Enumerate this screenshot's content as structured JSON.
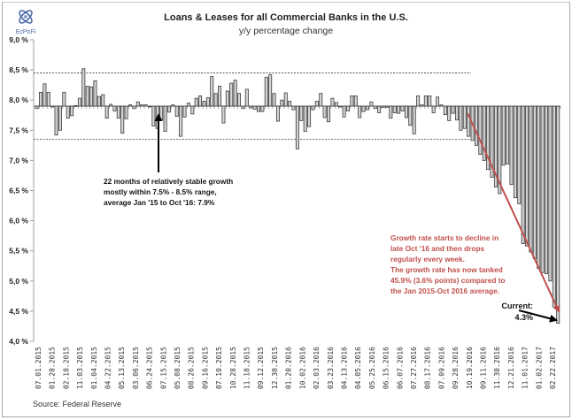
{
  "logo": {
    "text": "EcPoFi",
    "icon": "ecpofi-logo-icon"
  },
  "chart_data": {
    "type": "bar",
    "title": "Loans & Leases for all Commercial Banks in the U.S.",
    "subtitle": "y/y percentage change",
    "xlabel": "",
    "ylabel": "",
    "ylim": [
      4.0,
      9.0
    ],
    "bar_base": 7.9,
    "yticks": [
      "9,0 %",
      "8,5 %",
      "8,0 %",
      "7,5 %",
      "7,0 %",
      "6,5 %",
      "6,0 %",
      "5,5 %",
      "5,0 %",
      "4,5 %",
      "4,0 %"
    ],
    "ytick_values": [
      9.0,
      8.5,
      8.0,
      7.5,
      7.0,
      6.5,
      6.0,
      5.5,
      5.0,
      4.5,
      4.0
    ],
    "x_tick_labels": [
      "07.01.2015",
      "01.28.2015",
      "02.18.2015",
      "11.03.2015",
      "01.04.2015",
      "04.22.2015",
      "05.13.2015",
      "03.06.2015",
      "06.24.2015",
      "07.15.2015",
      "05.08.2015",
      "08.26.2015",
      "09.16.2015",
      "07.10.2015",
      "10.28.2015",
      "11.18.2015",
      "09.12.2015",
      "12.30.2015",
      "01.20.2016",
      "10.02.2016",
      "02.03.2016",
      "03.23.2016",
      "04.13.2016",
      "04.05.2016",
      "05.25.2016",
      "06.15.2016",
      "06.07.2016",
      "07.27.2016",
      "08.17.2016",
      "07.09.2016",
      "09.28.2016",
      "10.19.2016",
      "09.11.2016",
      "11.30.2016",
      "12.21.2016",
      "11.01.2017",
      "01.02.2017",
      "02.22.2017"
    ],
    "values": [
      7.86,
      8.13,
      8.27,
      8.13,
      7.89,
      7.42,
      7.5,
      8.13,
      7.7,
      7.74,
      7.91,
      8.03,
      8.52,
      8.23,
      8.22,
      8.32,
      8.06,
      8.09,
      7.7,
      7.93,
      7.82,
      7.7,
      7.45,
      7.69,
      7.92,
      7.86,
      7.97,
      7.92,
      7.92,
      7.89,
      7.57,
      7.53,
      7.67,
      7.48,
      7.8,
      7.92,
      7.73,
      7.4,
      7.72,
      7.95,
      7.77,
      8.03,
      8.07,
      7.98,
      8.04,
      8.39,
      8.11,
      8.23,
      7.62,
      8.15,
      8.28,
      8.33,
      8.11,
      7.86,
      8.18,
      7.87,
      7.85,
      7.81,
      7.81,
      8.38,
      8.42,
      8.11,
      7.65,
      8.0,
      8.12,
      7.98,
      7.84,
      7.19,
      7.66,
      7.48,
      7.56,
      7.84,
      7.98,
      8.11,
      7.71,
      7.64,
      8.03,
      7.96,
      7.89,
      7.72,
      7.82,
      8.07,
      8.07,
      7.71,
      7.81,
      7.84,
      7.97,
      7.86,
      7.79,
      7.88,
      7.88,
      7.7,
      7.79,
      7.78,
      7.82,
      7.71,
      7.58,
      7.44,
      8.07,
      7.92,
      8.07,
      8.07,
      7.79,
      8.05,
      7.92,
      7.76,
      7.66,
      7.78,
      7.67,
      7.5,
      7.53,
      7.4,
      7.33,
      7.25,
      7.1,
      7.0,
      6.85,
      6.72,
      6.56,
      6.45,
      6.92,
      6.94,
      6.6,
      6.38,
      6.28,
      5.62,
      5.58,
      5.48,
      5.37,
      5.21,
      5.14,
      5.12,
      5.0,
      4.57,
      4.3
    ],
    "reference_lines": [
      {
        "name": "upper-range",
        "value": 8.45,
        "style": "dashed"
      },
      {
        "name": "lower-range",
        "value": 7.35,
        "style": "dashed"
      }
    ],
    "annotations": {
      "stable": [
        "22 months of relatively stable growth",
        "mostly within 7.5% - 8.5% range,",
        "average Jan '15 to Oct '16: 7.9%"
      ],
      "decline": [
        "Growth rate starts to decline in",
        "late Oct '16 and then drops",
        "regularly every week.",
        "The growth rate has now tanked",
        "45.9% (3.6% points) compared to",
        "the Jan 2015-Oct 2016 average."
      ],
      "current_label": "Current:",
      "current_value": "4.3%"
    },
    "source": "Source: Federal Reserve",
    "grid": false,
    "legend": "none"
  },
  "colors": {
    "bar_fill": "#d4d4d4",
    "bar_stroke": "#3a3a3a",
    "trend_arrow": "#c0504d",
    "annotation_red": "#c0504d",
    "axis": "#a0a0a0"
  }
}
